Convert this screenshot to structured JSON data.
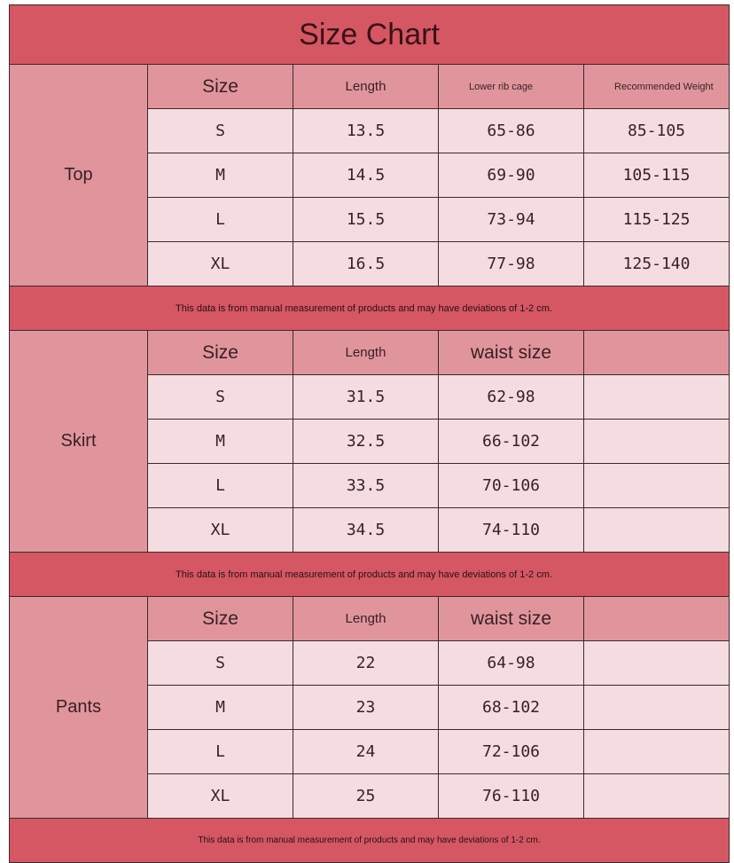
{
  "title": "Size Chart",
  "colors": {
    "header": "#d45763",
    "section": "#e0959d",
    "cell": "#f5dce0"
  },
  "sections": [
    {
      "label": "Top",
      "headers": [
        "Size",
        "Length",
        "Lower rib cage",
        "Recommended Weight"
      ],
      "rows": [
        [
          "S",
          "13.5",
          "65-86",
          "85-105"
        ],
        [
          "M",
          "14.5",
          "69-90",
          "105-115"
        ],
        [
          "L",
          "15.5",
          "73-94",
          "115-125"
        ],
        [
          "XL",
          "16.5",
          "77-98",
          "125-140"
        ]
      ],
      "note": "This data is from manual measurement of products and may have deviations of 1-2 cm."
    },
    {
      "label": "Skirt",
      "headers": [
        "Size",
        "Length",
        "waist size",
        ""
      ],
      "rows": [
        [
          "S",
          "31.5",
          "62-98",
          ""
        ],
        [
          "M",
          "32.5",
          "66-102",
          ""
        ],
        [
          "L",
          "33.5",
          "70-106",
          ""
        ],
        [
          "XL",
          "34.5",
          "74-110",
          ""
        ]
      ],
      "note": "This data is from manual measurement of products and may have deviations of 1-2 cm."
    },
    {
      "label": "Pants",
      "headers": [
        "Size",
        "Length",
        "waist size",
        ""
      ],
      "rows": [
        [
          "S",
          "22",
          "64-98",
          ""
        ],
        [
          "M",
          "23",
          "68-102",
          ""
        ],
        [
          "L",
          "24",
          "72-106",
          ""
        ],
        [
          "XL",
          "25",
          "76-110",
          ""
        ]
      ],
      "note": "This data is from manual measurement of products and may have deviations of 1-2 cm."
    }
  ]
}
